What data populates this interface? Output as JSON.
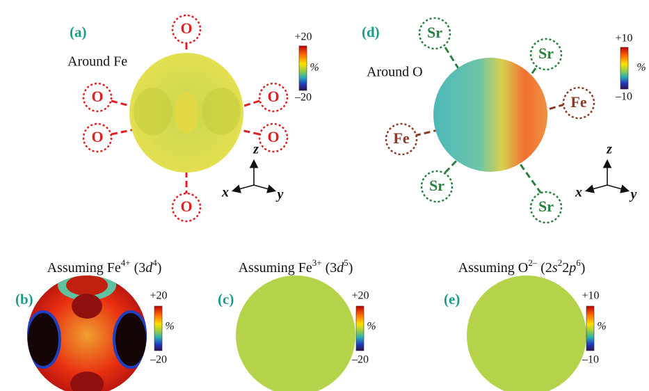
{
  "panels": {
    "a": {
      "label": "(a)",
      "caption": "Around Fe",
      "neighbors": [
        "O",
        "O",
        "O",
        "O",
        "O",
        "O"
      ],
      "colorbar": {
        "max": "+20",
        "unit": "%",
        "min": "–20"
      },
      "axes": {
        "z": "z",
        "x": "x",
        "y": "y"
      }
    },
    "d": {
      "label": "(d)",
      "caption": "Around O",
      "neighbors": [
        "Sr",
        "Sr",
        "Fe",
        "Fe",
        "Sr",
        "Sr"
      ],
      "colorbar": {
        "max": "+10",
        "unit": "%",
        "min": "–10"
      },
      "axes": {
        "z": "z",
        "x": "x",
        "y": "y"
      }
    },
    "b": {
      "label": "(b)",
      "caption": [
        "Assuming Fe",
        "4+",
        " (3",
        "d",
        "4",
        ")"
      ],
      "colorbar": {
        "max": "+20",
        "unit": "%",
        "min": "–20"
      }
    },
    "c": {
      "label": "(c)",
      "caption": [
        "Assuming Fe",
        "3+",
        " (3",
        "d",
        "5",
        ")"
      ],
      "colorbar": {
        "max": "+20",
        "unit": "%",
        "min": "–20"
      }
    },
    "e": {
      "label": "(e)",
      "caption": [
        "Assuming O",
        "2–",
        " (2",
        "s",
        "2",
        "2",
        "p",
        "6",
        ")"
      ],
      "colorbar": {
        "max": "+10",
        "unit": "%",
        "min": "–10"
      }
    }
  }
}
